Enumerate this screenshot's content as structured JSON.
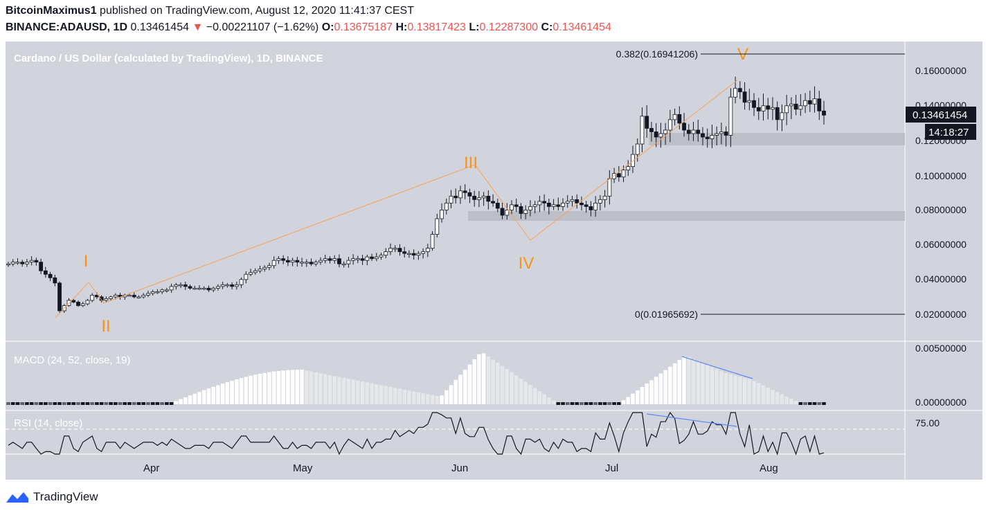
{
  "header": {
    "author": "BitcoinMaximus1",
    "published": "published on TradingView.com, August 12, 2020 11:41:37 CEST",
    "symbol": "BINANCE:ADAUSD, 1D",
    "last": "0.13461454",
    "change_arrow": "▼",
    "change": "−0.00221107 (−1.62%)",
    "open_label": "O:",
    "open": "0.13675187",
    "high_label": "H:",
    "high": "0.13817423",
    "low_label": "L:",
    "low": "0.12287300",
    "close_label": "C:",
    "close": "0.13461454"
  },
  "chart_title": "Cardano / US Dollar (calculated by TradingView), 1D, BINANCE",
  "price_tag": {
    "price": "0.13461454",
    "countdown": "14:18:27"
  },
  "fib_labels": {
    "top": "0.382(0.16941206)",
    "bottom": "0(0.01965692)"
  },
  "macd_label": "MACD (24, 52, close, 19)",
  "rsi_label": "RSI (14, close)",
  "footer": {
    "brand": "TradingView"
  },
  "colors": {
    "panel_bg": "#d1d4dc",
    "candle_up": "#ffffff",
    "candle_down": "#131722",
    "wave": "#f7a35c",
    "wave_label": "#f7931a",
    "divergence": "#5b8def",
    "change_red": "#ef5350"
  },
  "chart_data": [
    {
      "type": "candlestick",
      "title": "Cardano / US Dollar (calculated by TradingView), 1D, BINANCE",
      "x_ticks": [
        "Apr",
        "May",
        "Jun",
        "Jul",
        "Aug"
      ],
      "y_ticks": [
        "0.02000000",
        "0.04000000",
        "0.06000000",
        "0.08000000",
        "0.10000000",
        "0.12000000",
        "0.14000000",
        "0.16000000"
      ],
      "ylim": [
        0.0,
        0.174
      ],
      "dates_range": [
        "2020-03-06",
        "2020-08-12"
      ],
      "closes_approx": [
        0.049,
        0.05,
        0.05,
        0.049,
        0.05,
        0.051,
        0.05,
        0.045,
        0.043,
        0.041,
        0.038,
        0.022,
        0.025,
        0.028,
        0.027,
        0.025,
        0.026,
        0.028,
        0.031,
        0.03,
        0.028,
        0.029,
        0.03,
        0.031,
        0.03,
        0.031,
        0.031,
        0.03,
        0.03,
        0.031,
        0.032,
        0.033,
        0.033,
        0.034,
        0.034,
        0.036,
        0.037,
        0.037,
        0.036,
        0.035,
        0.035,
        0.035,
        0.035,
        0.034,
        0.035,
        0.036,
        0.037,
        0.037,
        0.036,
        0.037,
        0.04,
        0.043,
        0.044,
        0.045,
        0.046,
        0.047,
        0.048,
        0.051,
        0.052,
        0.051,
        0.05,
        0.051,
        0.05,
        0.05,
        0.05,
        0.049,
        0.05,
        0.051,
        0.052,
        0.051,
        0.052,
        0.049,
        0.049,
        0.051,
        0.052,
        0.052,
        0.051,
        0.053,
        0.052,
        0.053,
        0.054,
        0.056,
        0.058,
        0.058,
        0.056,
        0.055,
        0.055,
        0.054,
        0.055,
        0.056,
        0.058,
        0.066,
        0.075,
        0.08,
        0.084,
        0.088,
        0.087,
        0.091,
        0.09,
        0.088,
        0.086,
        0.087,
        0.088,
        0.085,
        0.084,
        0.081,
        0.077,
        0.08,
        0.083,
        0.082,
        0.078,
        0.08,
        0.082,
        0.083,
        0.085,
        0.084,
        0.082,
        0.083,
        0.082,
        0.084,
        0.085,
        0.086,
        0.084,
        0.083,
        0.082,
        0.08,
        0.084,
        0.086,
        0.088,
        0.098,
        0.101,
        0.099,
        0.103,
        0.105,
        0.112,
        0.118,
        0.134,
        0.127,
        0.125,
        0.122,
        0.124,
        0.126,
        0.132,
        0.135,
        0.13,
        0.126,
        0.124,
        0.126,
        0.124,
        0.122,
        0.121,
        0.123,
        0.124,
        0.125,
        0.123,
        0.145,
        0.15,
        0.148,
        0.142,
        0.143,
        0.139,
        0.137,
        0.14,
        0.138,
        0.139,
        0.132,
        0.136,
        0.14,
        0.141,
        0.138,
        0.14,
        0.143,
        0.141,
        0.144,
        0.137,
        0.1346
      ]
    },
    {
      "type": "bar",
      "title": "MACD (24, 52, close, 19)",
      "y_ticks": [
        "0.00000000",
        "0.00500000"
      ],
      "ylim": [
        0.0,
        0.0053
      ],
      "annotations": [
        "bearish divergence line"
      ]
    },
    {
      "type": "line",
      "title": "RSI (14, close)",
      "y_ticks": [
        "75.00"
      ],
      "ylim": [
        40,
        80
      ]
    }
  ]
}
